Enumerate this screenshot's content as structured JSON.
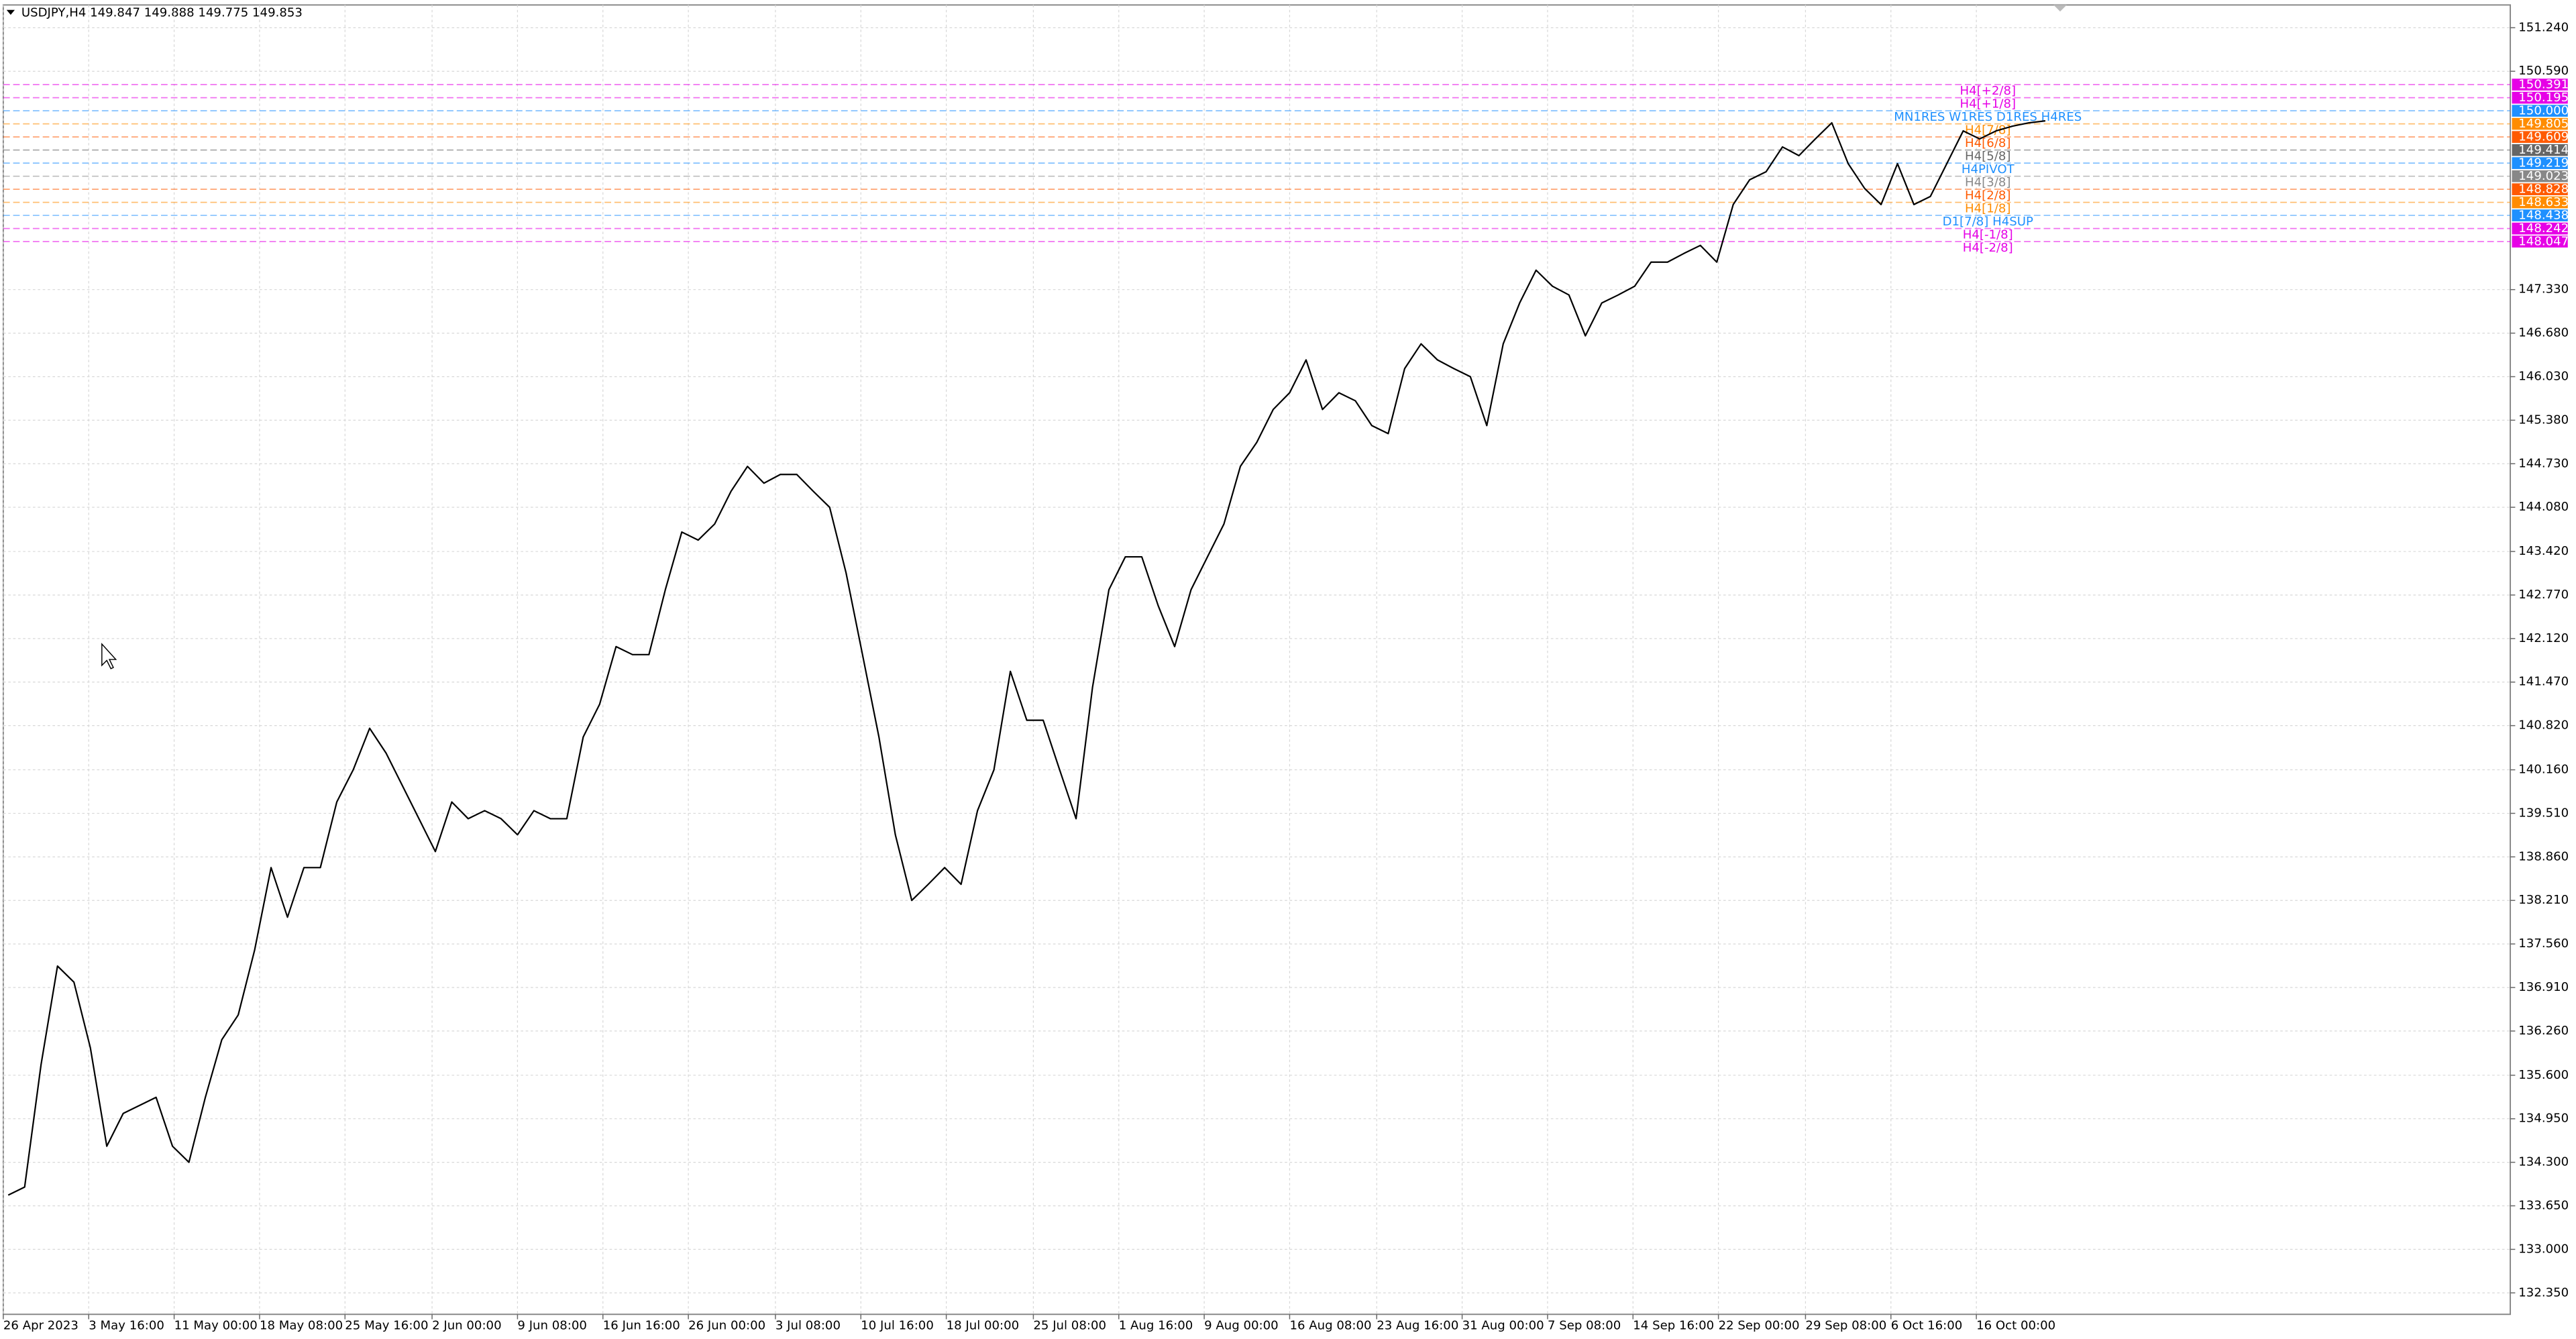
{
  "chart_data": {
    "type": "line",
    "title": "USDJPY,H4  149.847 149.888 149.775 149.853",
    "color": "#000000",
    "values": [
      133.81,
      133.93,
      135.76,
      137.23,
      136.99,
      136.01,
      134.54,
      135.03,
      135.15,
      135.27,
      134.54,
      134.3,
      135.27,
      136.13,
      136.5,
      137.47,
      138.7,
      137.96,
      138.7,
      138.7,
      139.68,
      140.16,
      140.78,
      140.41,
      139.92,
      139.43,
      138.94,
      139.68,
      139.43,
      139.55,
      139.43,
      139.19,
      139.55,
      139.43,
      139.43,
      140.65,
      141.14,
      142.0,
      141.88,
      141.88,
      142.85,
      143.71,
      143.59,
      143.83,
      144.32,
      144.69,
      144.44,
      144.57,
      144.57,
      144.32,
      144.08,
      143.1,
      141.88,
      140.65,
      139.19,
      138.21,
      138.45,
      138.7,
      138.45,
      139.55,
      140.16,
      141.63,
      140.9,
      140.9,
      140.16,
      139.43,
      141.39,
      142.85,
      143.34,
      143.34,
      142.61,
      142.0,
      142.85,
      143.34,
      143.83,
      144.69,
      145.05,
      145.54,
      145.79,
      146.28,
      145.54,
      145.79,
      145.67,
      145.3,
      145.18,
      146.15,
      146.52,
      146.28,
      146.15,
      146.03,
      145.3,
      146.52,
      147.13,
      147.62,
      147.38,
      147.25,
      146.64,
      147.13,
      147.25,
      147.38,
      147.74,
      147.74,
      147.87,
      147.99,
      147.74,
      148.6,
      148.97,
      149.09,
      149.46,
      149.33,
      149.58,
      149.82,
      149.21,
      148.84,
      148.6,
      149.21,
      148.6,
      148.72,
      149.21,
      149.7,
      149.58,
      149.7,
      149.77,
      149.82,
      149.85
    ],
    "xlim": [
      -0.3,
      152.3
    ],
    "ylim": [
      132.03,
      151.58
    ],
    "grid": true,
    "xticks": [
      {
        "value": -0.3,
        "label": "26 Apr 2023"
      },
      {
        "value": 4.9,
        "label": "3 May 16:00"
      },
      {
        "value": 10.1,
        "label": "11 May 00:00"
      },
      {
        "value": 15.3,
        "label": "18 May 08:00"
      },
      {
        "value": 20.5,
        "label": "25 May 16:00"
      },
      {
        "value": 25.8,
        "label": "2 Jun 00:00"
      },
      {
        "value": 31,
        "label": "9 Jun 08:00"
      },
      {
        "value": 36.2,
        "label": "16 Jun 16:00"
      },
      {
        "value": 41.4,
        "label": "26 Jun 00:00"
      },
      {
        "value": 46.7,
        "label": "3 Jul 08:00"
      },
      {
        "value": 51.9,
        "label": "10 Jul 16:00"
      },
      {
        "value": 57.1,
        "label": "18 Jul 00:00"
      },
      {
        "value": 62.4,
        "label": "25 Jul 08:00"
      },
      {
        "value": 67.6,
        "label": "1 Aug 16:00"
      },
      {
        "value": 72.8,
        "label": "9 Aug 00:00"
      },
      {
        "value": 78,
        "label": "16 Aug 08:00"
      },
      {
        "value": 83.3,
        "label": "23 Aug 16:00"
      },
      {
        "value": 88.5,
        "label": "31 Aug 00:00"
      },
      {
        "value": 93.7,
        "label": "7 Sep 08:00"
      },
      {
        "value": 98.9,
        "label": "14 Sep 16:00"
      },
      {
        "value": 104.1,
        "label": "22 Sep 00:00"
      },
      {
        "value": 109.4,
        "label": "29 Sep 08:00"
      },
      {
        "value": 114.6,
        "label": "6 Oct 16:00"
      },
      {
        "value": 119.8,
        "label": "16 Oct 00:00"
      }
    ],
    "yticks": [
      {
        "value": 151.24,
        "label": "151.240"
      },
      {
        "value": 150.59,
        "label": "150.590"
      },
      {
        "value": 147.33,
        "label": "147.330"
      },
      {
        "value": 146.68,
        "label": "146.680"
      },
      {
        "value": 146.03,
        "label": "146.030"
      },
      {
        "value": 145.38,
        "label": "145.380"
      },
      {
        "value": 144.73,
        "label": "144.730"
      },
      {
        "value": 144.08,
        "label": "144.080"
      },
      {
        "value": 143.42,
        "label": "143.420"
      },
      {
        "value": 142.77,
        "label": "142.770"
      },
      {
        "value": 142.12,
        "label": "142.120"
      },
      {
        "value": 141.47,
        "label": "141.470"
      },
      {
        "value": 140.82,
        "label": "140.820"
      },
      {
        "value": 140.16,
        "label": "140.160"
      },
      {
        "value": 139.51,
        "label": "139.510"
      },
      {
        "value": 138.86,
        "label": "138.860"
      },
      {
        "value": 138.21,
        "label": "138.210"
      },
      {
        "value": 137.56,
        "label": "137.560"
      },
      {
        "value": 136.91,
        "label": "136.910"
      },
      {
        "value": 136.26,
        "label": "136.260"
      },
      {
        "value": 135.6,
        "label": "135.600"
      },
      {
        "value": 134.95,
        "label": "134.950"
      },
      {
        "value": 134.3,
        "label": "134.300"
      },
      {
        "value": 133.65,
        "label": "133.650"
      },
      {
        "value": 133,
        "label": "133.000"
      },
      {
        "value": 132.35,
        "label": "132.350"
      }
    ],
    "levels": [
      {
        "name": "H4[+2/8]",
        "value": 150.391,
        "value_label": "150.391",
        "color": "#e600e6"
      },
      {
        "name": "H4[+1/8]",
        "value": 150.195,
        "value_label": "150.195",
        "color": "#e600e6"
      },
      {
        "name": "MN1RES W1RES D1RES H4RES",
        "value": 150,
        "value_label": "150.000",
        "color": "#1e90ff"
      },
      {
        "name": "H4[7/8]",
        "value": 149.805,
        "value_label": "149.805",
        "color": "#ff8c00"
      },
      {
        "name": "H4[6/8]",
        "value": 149.609,
        "value_label": "149.609",
        "color": "#ff5a00"
      },
      {
        "name": "H4[5/8]",
        "value": 149.414,
        "value_label": "149.414",
        "color": "#666666"
      },
      {
        "name": "H4PIVOT",
        "value": 149.219,
        "value_label": "149.219",
        "color": "#1e90ff"
      },
      {
        "name": "H4[3/8]",
        "value": 149.023,
        "value_label": "149.023",
        "color": "#888888"
      },
      {
        "name": "H4[2/8]",
        "value": 148.828,
        "value_label": "148.828",
        "color": "#ff5a00"
      },
      {
        "name": "H4[1/8]",
        "value": 148.633,
        "value_label": "148.633",
        "color": "#ff8c00"
      },
      {
        "name": "D1[7/8] H4SUP",
        "value": 148.438,
        "value_label": "148.438",
        "color": "#1e90ff"
      },
      {
        "name": "H4[-1/8]",
        "value": 148.242,
        "value_label": "148.242",
        "color": "#e600e6"
      },
      {
        "name": "H4[-2/8]",
        "value": 148.047,
        "value_label": "148.047",
        "color": "#e600e6"
      }
    ]
  }
}
